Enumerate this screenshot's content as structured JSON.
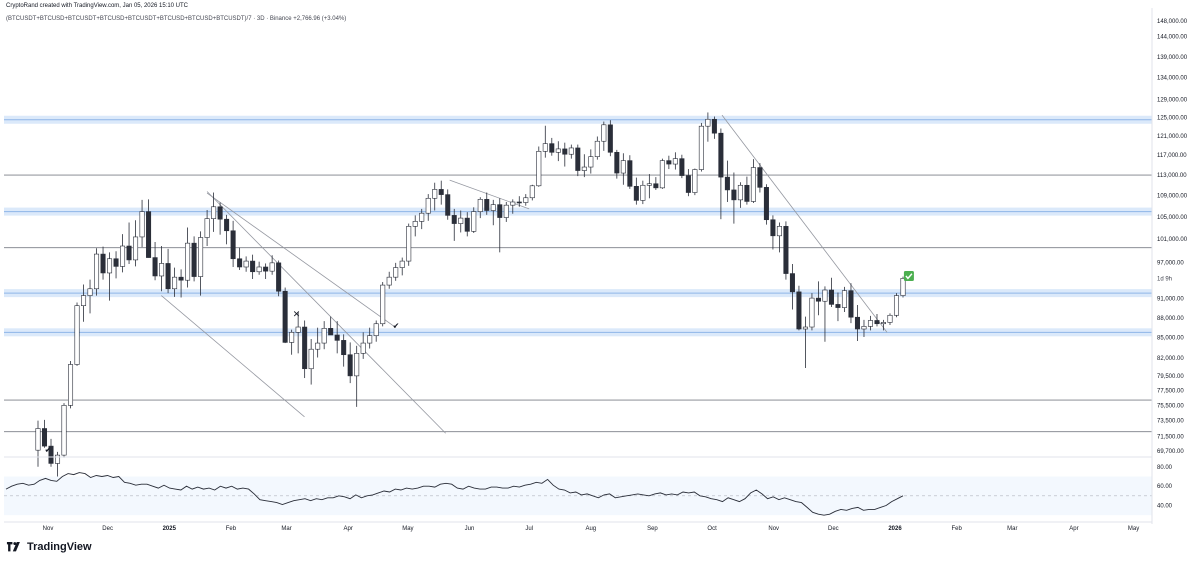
{
  "header": {
    "credit": "CryptoRand created with TradingView.com, Jan 05, 2026 15:10 UTC",
    "symbol": "(BTCUSDT+BTCUSD+BTCUSDT+BTCUSD+BTCUSDT+BTCUSD+BTCUSD+BTCUSDT)/7 · 3D · Binance",
    "change": "+2,766.96 (+3.04%)"
  },
  "footer": {
    "brand": "TradingView"
  },
  "colors": {
    "up": "#ffffff",
    "down": "#2a2e39",
    "zone": "#cfe2f8",
    "zone_line": "#8fb6e8",
    "line": "#7b7f87",
    "rsi_band": "#f3f8fe",
    "check": "#4caf50"
  },
  "chart_data": {
    "type": "candlestick",
    "price_axis": {
      "ticks": [
        "148,000.00",
        "144,000.00",
        "139,000.00",
        "134,000.00",
        "129,000.00",
        "125,000.00",
        "121,000.00",
        "117,000.00",
        "113,000.00",
        "109,000.00",
        "105,000.00",
        "101,000.00",
        "97,000.00",
        "91,000.00",
        "88,000.00",
        "85,000.00",
        "82,000.00",
        "79,500.00",
        "77,500.00",
        "75,500.00",
        "73,500.00",
        "71,500.00",
        "69,700.00"
      ],
      "scale": "log"
    },
    "price_label": "1d 9h",
    "rsi_axis": {
      "ticks": [
        "80.00",
        "60.00",
        "40.00"
      ],
      "band": [
        30,
        70
      ]
    },
    "time_axis": {
      "labels": [
        "Nov",
        "Dec",
        "2025",
        "Feb",
        "Mar",
        "Apr",
        "May",
        "Jun",
        "Jul",
        "Aug",
        "Sep",
        "Oct",
        "Nov",
        "Dec",
        "2026",
        "Feb",
        "Mar",
        "Apr",
        "May"
      ],
      "bold": [
        "2025",
        "2026"
      ]
    },
    "support_zones": [
      124500,
      106000,
      91900,
      85800
    ],
    "horizontal_lines": [
      113000,
      99500,
      76200,
      72100
    ],
    "trendlines": [
      {
        "from": [
          "2025-01-20",
          109800
        ],
        "to": [
          "2025-05-20",
          71900
        ]
      },
      {
        "from": [
          "2025-01-20",
          109500
        ],
        "to": [
          "2025-04-25",
          86500
        ]
      },
      {
        "from": [
          "2025-05-22",
          112000
        ],
        "to": [
          "2025-07-01",
          106500
        ]
      },
      {
        "from": [
          "2025-10-06",
          125500
        ],
        "to": [
          "2025-12-28",
          85800
        ]
      },
      {
        "from": [
          "2024-12-28",
          91500
        ],
        "to": [
          "2025-03-10",
          74000
        ]
      }
    ],
    "markers": [
      {
        "type": "cross",
        "date": "2025-03-06",
        "price": 88600
      },
      {
        "type": "check",
        "date": "2025-04-25",
        "price": 86800
      },
      {
        "type": "check",
        "date": "2024-11-01",
        "price": 69900
      },
      {
        "type": "check-badge",
        "date": "2026-01-08",
        "price": 94700
      }
    ],
    "candles": [
      {
        "o": 69800,
        "h": 73500,
        "l": 67800,
        "c": 72500
      },
      {
        "o": 72500,
        "h": 73600,
        "l": 70100,
        "c": 70300
      },
      {
        "o": 70300,
        "h": 71200,
        "l": 67800,
        "c": 68200
      },
      {
        "o": 68200,
        "h": 69600,
        "l": 66600,
        "c": 69200
      },
      {
        "o": 69200,
        "h": 75800,
        "l": 68900,
        "c": 75500
      },
      {
        "o": 75500,
        "h": 81600,
        "l": 75100,
        "c": 81100
      },
      {
        "o": 81100,
        "h": 90400,
        "l": 80900,
        "c": 89900
      },
      {
        "o": 89900,
        "h": 93300,
        "l": 87400,
        "c": 91500
      },
      {
        "o": 91500,
        "h": 94100,
        "l": 88700,
        "c": 92600
      },
      {
        "o": 92600,
        "h": 99400,
        "l": 91500,
        "c": 98400
      },
      {
        "o": 98400,
        "h": 99700,
        "l": 94100,
        "c": 95200
      },
      {
        "o": 95200,
        "h": 98700,
        "l": 90700,
        "c": 97600
      },
      {
        "o": 97600,
        "h": 98900,
        "l": 94300,
        "c": 96300
      },
      {
        "o": 96300,
        "h": 101900,
        "l": 95300,
        "c": 99800
      },
      {
        "o": 99800,
        "h": 104000,
        "l": 96700,
        "c": 97400
      },
      {
        "o": 97400,
        "h": 104400,
        "l": 96300,
        "c": 101400
      },
      {
        "o": 101400,
        "h": 108200,
        "l": 99600,
        "c": 106000
      },
      {
        "o": 106000,
        "h": 108300,
        "l": 97800,
        "c": 97800
      },
      {
        "o": 97800,
        "h": 100500,
        "l": 94000,
        "c": 94700
      },
      {
        "o": 94700,
        "h": 99800,
        "l": 92200,
        "c": 96800
      },
      {
        "o": 96800,
        "h": 99300,
        "l": 91900,
        "c": 92600
      },
      {
        "o": 92600,
        "h": 96100,
        "l": 91300,
        "c": 94500
      },
      {
        "o": 94500,
        "h": 95800,
        "l": 91200,
        "c": 94000
      },
      {
        "o": 94000,
        "h": 103100,
        "l": 92800,
        "c": 100300
      },
      {
        "o": 100300,
        "h": 101500,
        "l": 93800,
        "c": 94600
      },
      {
        "o": 94600,
        "h": 102400,
        "l": 91500,
        "c": 101300
      },
      {
        "o": 101300,
        "h": 106300,
        "l": 99800,
        "c": 104700
      },
      {
        "o": 104700,
        "h": 109600,
        "l": 102300,
        "c": 106900
      },
      {
        "o": 106900,
        "h": 107700,
        "l": 101800,
        "c": 104600
      },
      {
        "o": 104600,
        "h": 105400,
        "l": 100100,
        "c": 102500
      },
      {
        "o": 102500,
        "h": 104300,
        "l": 96200,
        "c": 97600
      },
      {
        "o": 97600,
        "h": 99500,
        "l": 95700,
        "c": 96200
      },
      {
        "o": 96200,
        "h": 98000,
        "l": 95400,
        "c": 97200
      },
      {
        "o": 97200,
        "h": 98300,
        "l": 94200,
        "c": 95400
      },
      {
        "o": 95400,
        "h": 97100,
        "l": 94900,
        "c": 96200
      },
      {
        "o": 96200,
        "h": 96800,
        "l": 94200,
        "c": 95500
      },
      {
        "o": 95500,
        "h": 98200,
        "l": 94900,
        "c": 96900
      },
      {
        "o": 96900,
        "h": 97300,
        "l": 91400,
        "c": 92200
      },
      {
        "o": 92200,
        "h": 92800,
        "l": 84200,
        "c": 84300
      },
      {
        "o": 84300,
        "h": 86200,
        "l": 82500,
        "c": 85800
      },
      {
        "o": 85800,
        "h": 88900,
        "l": 82700,
        "c": 86600
      },
      {
        "o": 86600,
        "h": 87600,
        "l": 79200,
        "c": 80500
      },
      {
        "o": 80500,
        "h": 84800,
        "l": 78300,
        "c": 83300
      },
      {
        "o": 83300,
        "h": 86500,
        "l": 82100,
        "c": 84200
      },
      {
        "o": 84200,
        "h": 87500,
        "l": 83300,
        "c": 86400
      },
      {
        "o": 86400,
        "h": 88200,
        "l": 85400,
        "c": 85400
      },
      {
        "o": 85400,
        "h": 87500,
        "l": 82700,
        "c": 84600
      },
      {
        "o": 84600,
        "h": 85500,
        "l": 80800,
        "c": 82500
      },
      {
        "o": 82500,
        "h": 84300,
        "l": 78500,
        "c": 79500
      },
      {
        "o": 79500,
        "h": 83800,
        "l": 75300,
        "c": 82700
      },
      {
        "o": 82700,
        "h": 85800,
        "l": 81900,
        "c": 84200
      },
      {
        "o": 84200,
        "h": 86500,
        "l": 83400,
        "c": 85300
      },
      {
        "o": 85300,
        "h": 87600,
        "l": 84400,
        "c": 87100
      },
      {
        "o": 87100,
        "h": 93700,
        "l": 86700,
        "c": 93200
      },
      {
        "o": 93200,
        "h": 95400,
        "l": 92600,
        "c": 94500
      },
      {
        "o": 94500,
        "h": 96900,
        "l": 93900,
        "c": 96100
      },
      {
        "o": 96100,
        "h": 97800,
        "l": 94800,
        "c": 97200
      },
      {
        "o": 97200,
        "h": 103800,
        "l": 96400,
        "c": 103300
      },
      {
        "o": 103300,
        "h": 105300,
        "l": 101500,
        "c": 104200
      },
      {
        "o": 104200,
        "h": 106500,
        "l": 102800,
        "c": 105700
      },
      {
        "o": 105700,
        "h": 109300,
        "l": 104300,
        "c": 108500
      },
      {
        "o": 108500,
        "h": 111500,
        "l": 106200,
        "c": 110200
      },
      {
        "o": 110200,
        "h": 111900,
        "l": 107300,
        "c": 109200
      },
      {
        "o": 109200,
        "h": 110200,
        "l": 104500,
        "c": 105300
      },
      {
        "o": 105300,
        "h": 106500,
        "l": 100700,
        "c": 103800
      },
      {
        "o": 103800,
        "h": 106200,
        "l": 102200,
        "c": 104800
      },
      {
        "o": 104800,
        "h": 105900,
        "l": 101500,
        "c": 102400
      },
      {
        "o": 102400,
        "h": 106800,
        "l": 102100,
        "c": 106000
      },
      {
        "o": 106000,
        "h": 108700,
        "l": 104800,
        "c": 108300
      },
      {
        "o": 108300,
        "h": 109600,
        "l": 105400,
        "c": 106200
      },
      {
        "o": 106200,
        "h": 108200,
        "l": 103500,
        "c": 107300
      },
      {
        "o": 107300,
        "h": 108500,
        "l": 98700,
        "c": 104900
      },
      {
        "o": 104900,
        "h": 107800,
        "l": 104100,
        "c": 107200
      },
      {
        "o": 107200,
        "h": 108300,
        "l": 105600,
        "c": 107800
      },
      {
        "o": 107800,
        "h": 108900,
        "l": 106900,
        "c": 107700
      },
      {
        "o": 107700,
        "h": 109300,
        "l": 107100,
        "c": 108600
      },
      {
        "o": 108600,
        "h": 111100,
        "l": 108100,
        "c": 110900
      },
      {
        "o": 110900,
        "h": 118800,
        "l": 110700,
        "c": 117800
      },
      {
        "o": 117800,
        "h": 123200,
        "l": 116500,
        "c": 119400
      },
      {
        "o": 119400,
        "h": 120600,
        "l": 116900,
        "c": 117600
      },
      {
        "o": 117600,
        "h": 119900,
        "l": 115800,
        "c": 118300
      },
      {
        "o": 118300,
        "h": 119600,
        "l": 114700,
        "c": 117200
      },
      {
        "o": 117200,
        "h": 119200,
        "l": 116300,
        "c": 118500
      },
      {
        "o": 118500,
        "h": 119200,
        "l": 112800,
        "c": 113900
      },
      {
        "o": 113900,
        "h": 117200,
        "l": 112600,
        "c": 114600
      },
      {
        "o": 114600,
        "h": 118200,
        "l": 113300,
        "c": 116700
      },
      {
        "o": 116700,
        "h": 120900,
        "l": 116100,
        "c": 119900
      },
      {
        "o": 119900,
        "h": 124100,
        "l": 117900,
        "c": 123400
      },
      {
        "o": 123400,
        "h": 124400,
        "l": 116800,
        "c": 117600
      },
      {
        "o": 117600,
        "h": 118100,
        "l": 112300,
        "c": 113400
      },
      {
        "o": 113400,
        "h": 117400,
        "l": 111100,
        "c": 115900
      },
      {
        "o": 115900,
        "h": 117000,
        "l": 110300,
        "c": 110800
      },
      {
        "o": 110800,
        "h": 112500,
        "l": 107300,
        "c": 108100
      },
      {
        "o": 108100,
        "h": 111900,
        "l": 107400,
        "c": 111000
      },
      {
        "o": 111000,
        "h": 113200,
        "l": 108500,
        "c": 111300
      },
      {
        "o": 111300,
        "h": 112600,
        "l": 110100,
        "c": 110500
      },
      {
        "o": 110500,
        "h": 116300,
        "l": 110300,
        "c": 115900
      },
      {
        "o": 115900,
        "h": 116900,
        "l": 114200,
        "c": 115200
      },
      {
        "o": 115200,
        "h": 117600,
        "l": 114100,
        "c": 116300
      },
      {
        "o": 116300,
        "h": 117100,
        "l": 112400,
        "c": 112900
      },
      {
        "o": 112900,
        "h": 114200,
        "l": 108900,
        "c": 109600
      },
      {
        "o": 109600,
        "h": 114300,
        "l": 109100,
        "c": 114100
      },
      {
        "o": 114100,
        "h": 123800,
        "l": 113700,
        "c": 123100
      },
      {
        "o": 123100,
        "h": 126100,
        "l": 119800,
        "c": 124600
      },
      {
        "o": 124600,
        "h": 125200,
        "l": 120400,
        "c": 121600
      },
      {
        "o": 121600,
        "h": 122600,
        "l": 104600,
        "c": 112600
      },
      {
        "o": 112600,
        "h": 115900,
        "l": 107800,
        "c": 110100
      },
      {
        "o": 110100,
        "h": 113500,
        "l": 103800,
        "c": 108200
      },
      {
        "o": 108200,
        "h": 111600,
        "l": 106700,
        "c": 111000
      },
      {
        "o": 111000,
        "h": 112700,
        "l": 107300,
        "c": 107900
      },
      {
        "o": 107900,
        "h": 116200,
        "l": 107600,
        "c": 114500
      },
      {
        "o": 114500,
        "h": 115400,
        "l": 109600,
        "c": 110600
      },
      {
        "o": 110600,
        "h": 111200,
        "l": 103600,
        "c": 104500
      },
      {
        "o": 104500,
        "h": 105300,
        "l": 99200,
        "c": 101600
      },
      {
        "o": 101600,
        "h": 104000,
        "l": 98700,
        "c": 103300
      },
      {
        "o": 103300,
        "h": 104200,
        "l": 94100,
        "c": 95100
      },
      {
        "o": 95100,
        "h": 96700,
        "l": 89300,
        "c": 92100
      },
      {
        "o": 92100,
        "h": 93100,
        "l": 86100,
        "c": 86300
      },
      {
        "o": 86300,
        "h": 88200,
        "l": 80600,
        "c": 86600
      },
      {
        "o": 86600,
        "h": 91900,
        "l": 86100,
        "c": 91100
      },
      {
        "o": 91100,
        "h": 93800,
        "l": 88400,
        "c": 90600
      },
      {
        "o": 90600,
        "h": 93000,
        "l": 84400,
        "c": 92400
      },
      {
        "o": 92400,
        "h": 94400,
        "l": 89700,
        "c": 90100
      },
      {
        "o": 90100,
        "h": 92000,
        "l": 87500,
        "c": 89600
      },
      {
        "o": 89600,
        "h": 92900,
        "l": 88900,
        "c": 92300
      },
      {
        "o": 92300,
        "h": 93500,
        "l": 87200,
        "c": 88100
      },
      {
        "o": 88100,
        "h": 90000,
        "l": 84500,
        "c": 86300
      },
      {
        "o": 86300,
        "h": 87700,
        "l": 85100,
        "c": 86700
      },
      {
        "o": 86700,
        "h": 88300,
        "l": 86100,
        "c": 87600
      },
      {
        "o": 87600,
        "h": 88600,
        "l": 86700,
        "c": 87100
      },
      {
        "o": 87100,
        "h": 87700,
        "l": 86100,
        "c": 87300
      },
      {
        "o": 87300,
        "h": 88700,
        "l": 86900,
        "c": 88400
      },
      {
        "o": 88400,
        "h": 91900,
        "l": 88100,
        "c": 91500
      },
      {
        "o": 91500,
        "h": 94600,
        "l": 91200,
        "c": 94300
      }
    ],
    "rsi": [
      57,
      60,
      62,
      63,
      61,
      62,
      66,
      68,
      66,
      65,
      70,
      73,
      72,
      74,
      73,
      69,
      71,
      70,
      71,
      69,
      70,
      64,
      63,
      61,
      62,
      62,
      60,
      58,
      61,
      58,
      57,
      56,
      60,
      57,
      59,
      57,
      58,
      56,
      60,
      58,
      60,
      57,
      58,
      57,
      52,
      46,
      45,
      44,
      43,
      41,
      43,
      45,
      46,
      47,
      45,
      47,
      46,
      48,
      48,
      50,
      49,
      47,
      51,
      48,
      50,
      51,
      53,
      55,
      54,
      57,
      56,
      58,
      57,
      58,
      60,
      60,
      59,
      62,
      63,
      62,
      58,
      57,
      60,
      58,
      57,
      57,
      59,
      59,
      58,
      58,
      60,
      59,
      61,
      62,
      64,
      63,
      67,
      61,
      57,
      56,
      53,
      54,
      51,
      52,
      50,
      48,
      51,
      52,
      48,
      49,
      50,
      51,
      52,
      51,
      50,
      52,
      53,
      51,
      52,
      51,
      54,
      53,
      54,
      50,
      49,
      47,
      46,
      44,
      48,
      46,
      44,
      47,
      53,
      56,
      52,
      47,
      49,
      46,
      48,
      46,
      44,
      43,
      38,
      33,
      31,
      30,
      31,
      34,
      36,
      35,
      37,
      38,
      35,
      36,
      36,
      38,
      40,
      44,
      47,
      50
    ]
  }
}
